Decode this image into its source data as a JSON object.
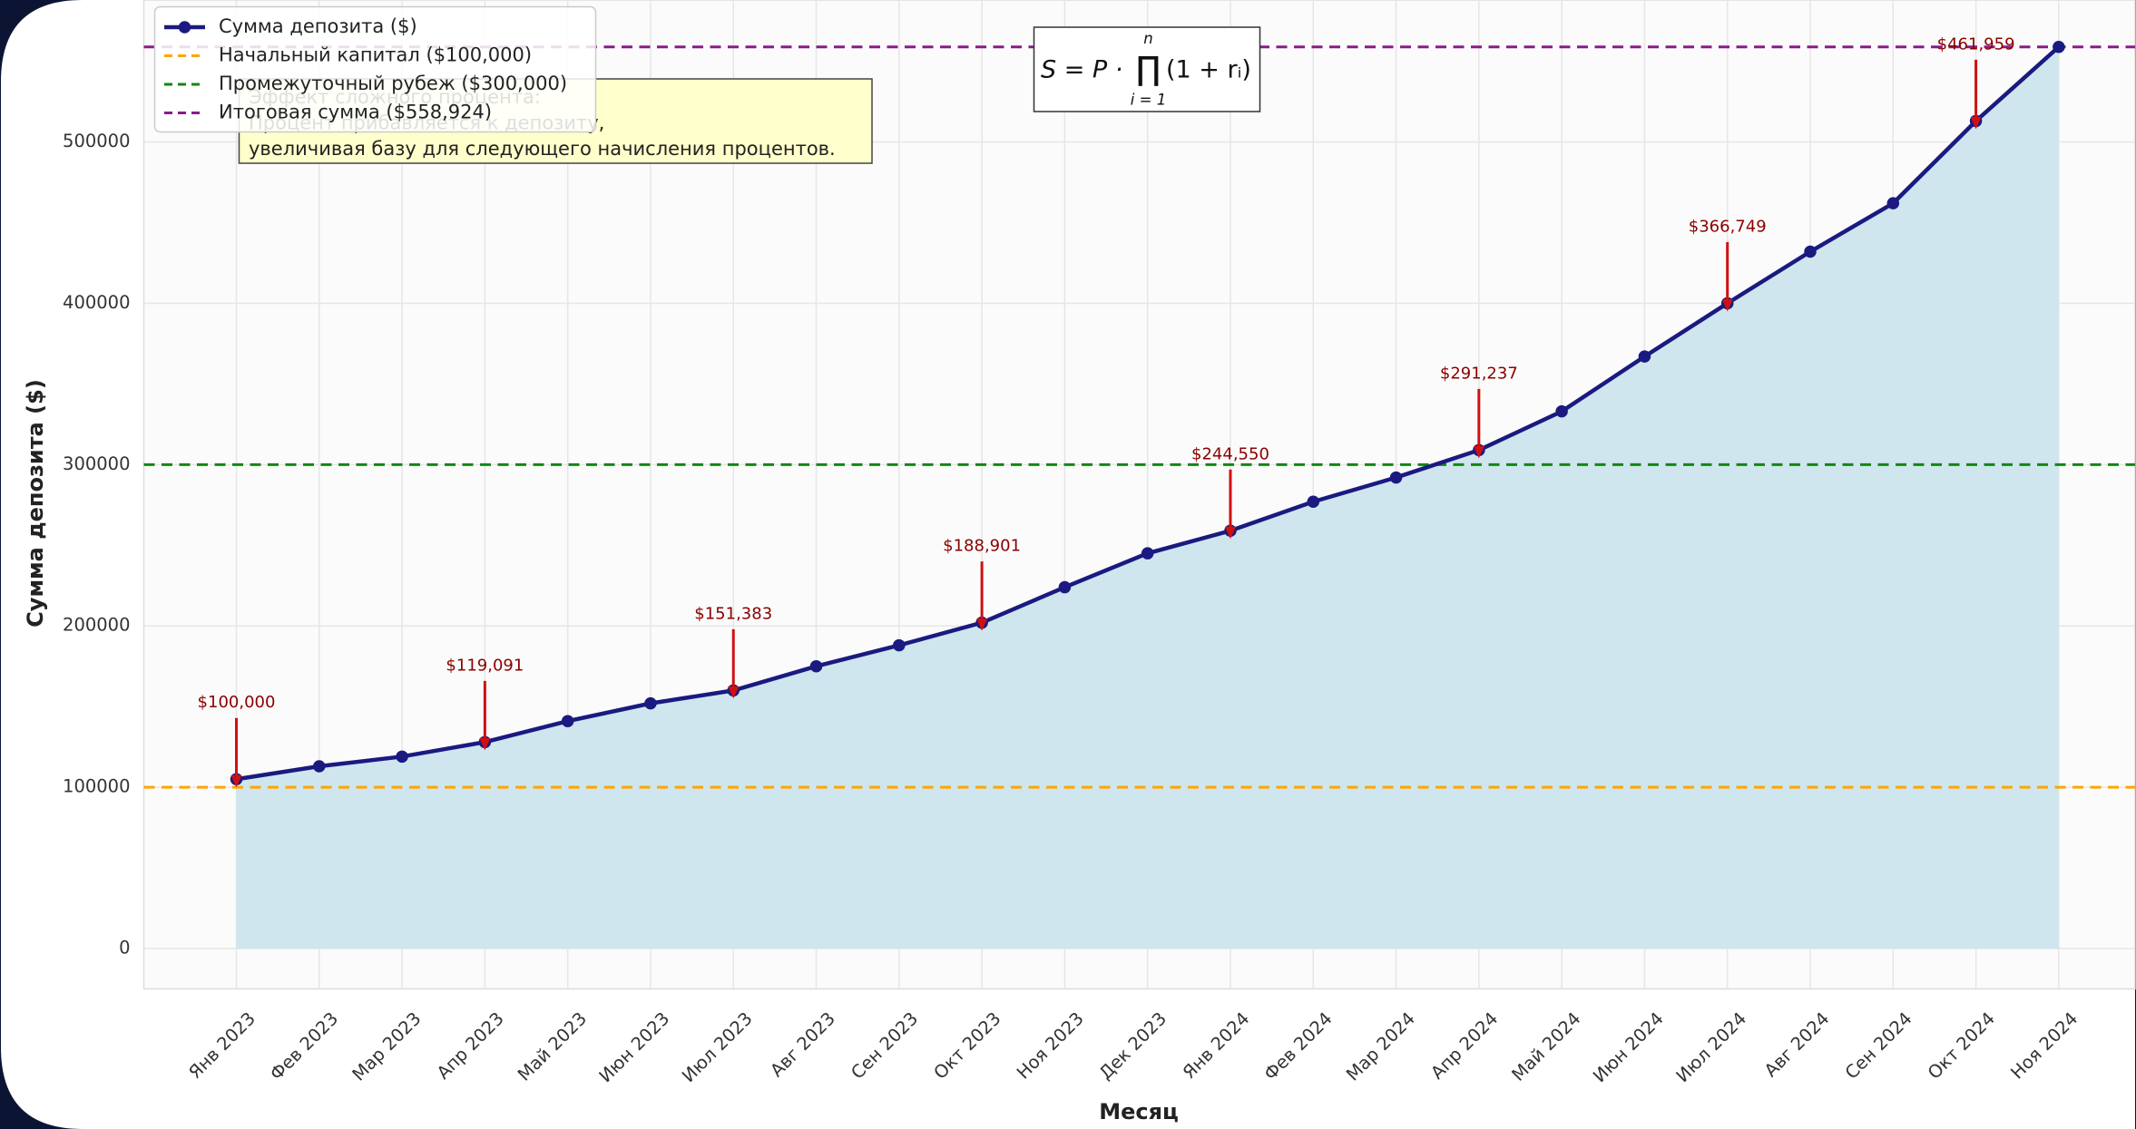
{
  "chart_data": {
    "type": "line",
    "x_label": "Месяц",
    "y_label": "Сумма депозита ($)",
    "categories": [
      "Янв 2023",
      "Фев 2023",
      "Мар 2023",
      "Апр 2023",
      "Май 2023",
      "Июн 2023",
      "Июл 2023",
      "Авг 2023",
      "Сен 2023",
      "Окт 2023",
      "Ноя 2023",
      "Дек 2023",
      "Янв 2024",
      "Фев 2024",
      "Мар 2024",
      "Апр 2024",
      "Май 2024",
      "Июн 2024",
      "Июл 2024",
      "Авг 2024",
      "Сен 2024",
      "Окт 2024",
      "Ноя 2024"
    ],
    "series": [
      {
        "name": "Сумма депозита ($)",
        "color": "#1a1a80",
        "fill": "#cfe6ee",
        "values": [
          105000,
          113000,
          119000,
          128000,
          141000,
          152000,
          160000,
          175000,
          188000,
          202000,
          224000,
          245000,
          259000,
          277000,
          292000,
          309000,
          333000,
          367000,
          400000,
          432000,
          462000,
          513000,
          558924
        ]
      }
    ],
    "reference_lines": [
      {
        "name": "Начальный капитал ($100,000)",
        "value": 100000,
        "color": "#ffa500"
      },
      {
        "name": "Промежуточный рубеж ($300,000)",
        "value": 300000,
        "color": "#118811"
      },
      {
        "name": "Итоговая сумма ($558,924)",
        "value": 558924,
        "color": "#8b1a8b"
      }
    ],
    "annotations": [
      {
        "x": "Янв 2023",
        "text": "$100,000"
      },
      {
        "x": "Апр 2023",
        "text": "$119,091"
      },
      {
        "x": "Июл 2023",
        "text": "$151,383"
      },
      {
        "x": "Окт 2023",
        "text": "$188,901"
      },
      {
        "x": "Янв 2024",
        "text": "$244,550"
      },
      {
        "x": "Апр 2024",
        "text": "$291,237"
      },
      {
        "x": "Июл 2024",
        "text": "$366,749"
      },
      {
        "x": "Окт 2024",
        "text": "$461,959"
      }
    ],
    "annotation_color": "#d01010",
    "note_box": [
      "Эффект сложного процента:",
      "Процент прибавляется к депозиту,",
      "увеличивая базу для следующего начисления процентов."
    ],
    "formula": {
      "lhs": "S = P ·",
      "op": "∏",
      "upper": "n",
      "lower": "i = 1",
      "rhs": "(1 + rᵢ)"
    },
    "ylim": [
      -25000,
      588000
    ],
    "yticks": [
      0,
      100000,
      200000,
      300000,
      400000,
      500000
    ],
    "grid": true,
    "legend": "upper left"
  }
}
